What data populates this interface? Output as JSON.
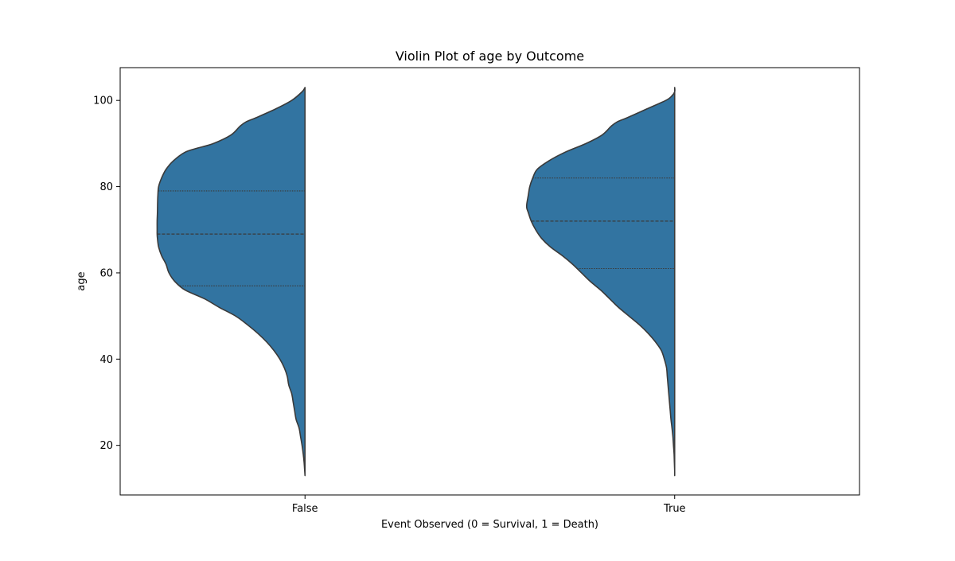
{
  "chart_data": {
    "type": "violin",
    "title": "Violin Plot of age by Outcome",
    "xlabel": "Event Observed (0 = Survival, 1 = Death)",
    "ylabel": "age",
    "categories": [
      "False",
      "True"
    ],
    "ylim": [
      8.5,
      107.6
    ],
    "yticks": [
      20,
      40,
      60,
      80,
      100
    ],
    "grid": false,
    "side": "left-half",
    "color": "#3274a1",
    "edge_color": "#3a3a3a",
    "violins": [
      {
        "category": "False",
        "quartiles": [
          57,
          69,
          79
        ],
        "profile": [
          [
            103,
            0.0
          ],
          [
            102,
            0.02
          ],
          [
            100,
            0.09
          ],
          [
            98,
            0.2
          ],
          [
            96,
            0.33
          ],
          [
            95,
            0.4
          ],
          [
            94,
            0.44
          ],
          [
            92,
            0.5
          ],
          [
            90,
            0.62
          ],
          [
            89,
            0.72
          ],
          [
            88,
            0.81
          ],
          [
            86,
            0.89
          ],
          [
            84,
            0.94
          ],
          [
            82,
            0.97
          ],
          [
            80,
            0.99
          ],
          [
            78,
            0.995
          ],
          [
            76,
            0.997
          ],
          [
            74,
            0.998
          ],
          [
            72,
            1.0
          ],
          [
            70,
            1.0
          ],
          [
            69,
            1.0
          ],
          [
            68,
            0.998
          ],
          [
            66,
            0.99
          ],
          [
            64,
            0.97
          ],
          [
            62,
            0.94
          ],
          [
            60,
            0.92
          ],
          [
            58,
            0.88
          ],
          [
            56,
            0.81
          ],
          [
            54,
            0.68
          ],
          [
            52,
            0.58
          ],
          [
            50,
            0.47
          ],
          [
            48,
            0.39
          ],
          [
            46,
            0.32
          ],
          [
            44,
            0.26
          ],
          [
            42,
            0.21
          ],
          [
            40,
            0.17
          ],
          [
            38,
            0.14
          ],
          [
            36,
            0.12
          ],
          [
            34,
            0.11
          ],
          [
            32,
            0.09
          ],
          [
            30,
            0.08
          ],
          [
            28,
            0.07
          ],
          [
            26,
            0.06
          ],
          [
            24,
            0.04
          ],
          [
            22,
            0.03
          ],
          [
            20,
            0.02
          ],
          [
            18,
            0.012
          ],
          [
            16,
            0.006
          ],
          [
            14,
            0.002
          ],
          [
            13,
            0.0
          ]
        ]
      },
      {
        "category": "True",
        "quartiles": [
          61,
          72,
          82
        ],
        "profile": [
          [
            103,
            0.0
          ],
          [
            102,
            0.0
          ],
          [
            101,
            0.02
          ],
          [
            100,
            0.06
          ],
          [
            98,
            0.19
          ],
          [
            96,
            0.32
          ],
          [
            95,
            0.39
          ],
          [
            94,
            0.43
          ],
          [
            92,
            0.49
          ],
          [
            90,
            0.6
          ],
          [
            88,
            0.74
          ],
          [
            86,
            0.85
          ],
          [
            84,
            0.93
          ],
          [
            82,
            0.96
          ],
          [
            80,
            0.98
          ],
          [
            78,
            0.99
          ],
          [
            76,
            1.0
          ],
          [
            75,
            1.0
          ],
          [
            74,
            0.99
          ],
          [
            72,
            0.97
          ],
          [
            70,
            0.94
          ],
          [
            68,
            0.9
          ],
          [
            66,
            0.84
          ],
          [
            64,
            0.76
          ],
          [
            62,
            0.69
          ],
          [
            60,
            0.63
          ],
          [
            58,
            0.57
          ],
          [
            56,
            0.5
          ],
          [
            54,
            0.44
          ],
          [
            52,
            0.38
          ],
          [
            50,
            0.31
          ],
          [
            48,
            0.24
          ],
          [
            46,
            0.18
          ],
          [
            44,
            0.13
          ],
          [
            42,
            0.09
          ],
          [
            40,
            0.07
          ],
          [
            38,
            0.055
          ],
          [
            36,
            0.05
          ],
          [
            34,
            0.045
          ],
          [
            32,
            0.04
          ],
          [
            30,
            0.035
          ],
          [
            28,
            0.03
          ],
          [
            26,
            0.025
          ],
          [
            24,
            0.018
          ],
          [
            22,
            0.012
          ],
          [
            20,
            0.008
          ],
          [
            18,
            0.004
          ],
          [
            16,
            0.002
          ],
          [
            14,
            0.0
          ],
          [
            13,
            0.0
          ]
        ]
      }
    ]
  }
}
